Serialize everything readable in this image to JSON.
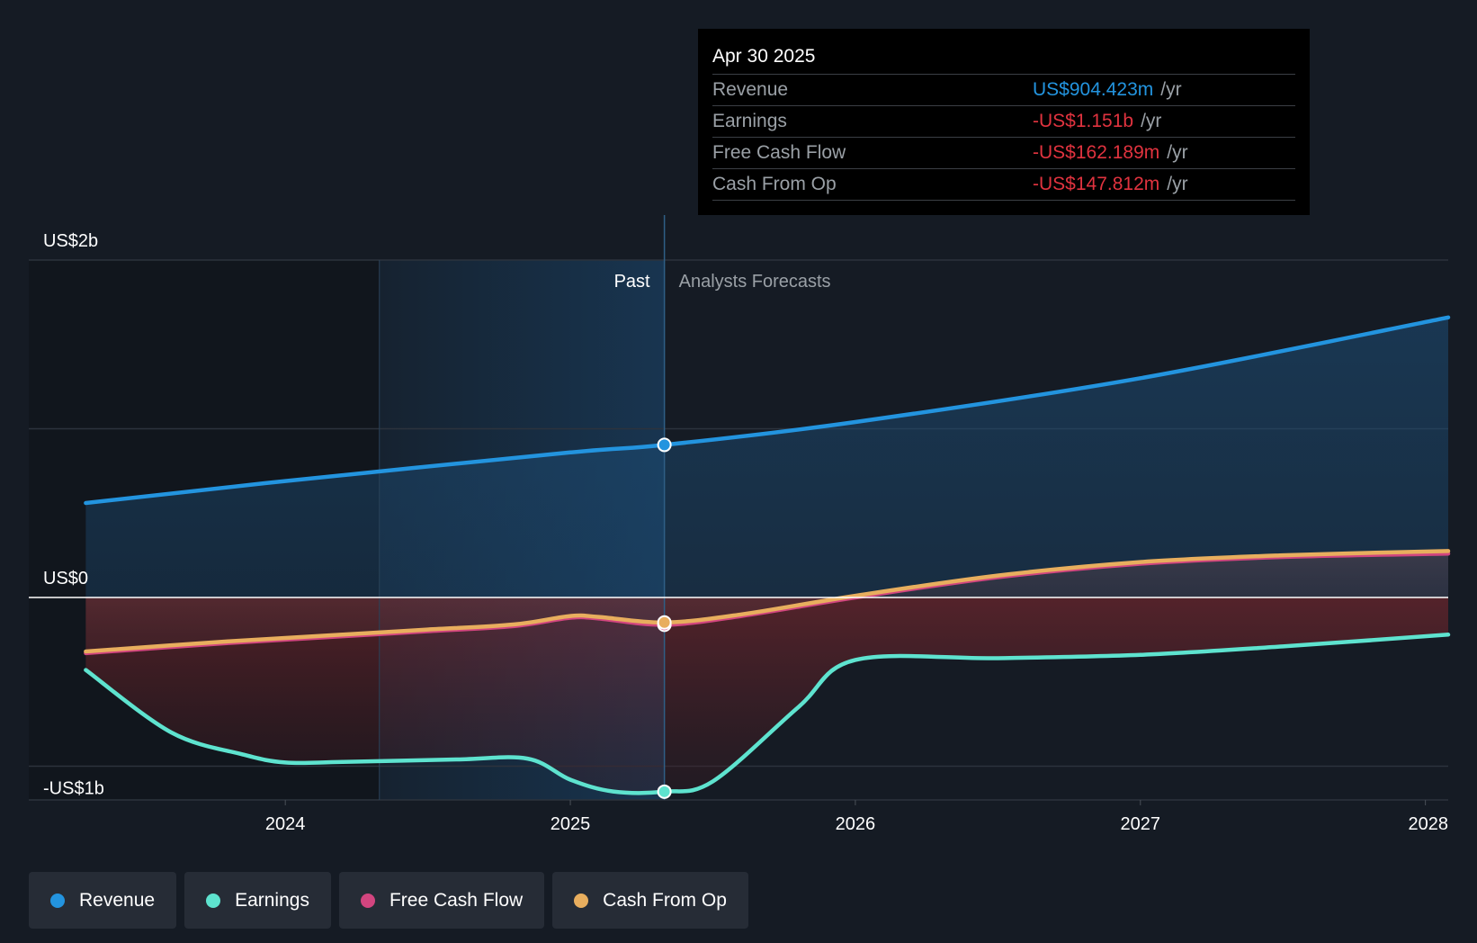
{
  "chart_data": {
    "type": "line",
    "title": "",
    "x_axis": {
      "ticks": [
        "2024",
        "2025",
        "2026",
        "2027",
        "2028"
      ],
      "range": [
        2023.1,
        2028.08
      ]
    },
    "y_axis": {
      "tick_labels": [
        "US$2b",
        "US$0",
        "-US$1b"
      ],
      "ticks": [
        2000,
        0,
        -1000
      ],
      "range": [
        -1200,
        2000
      ],
      "unit": "US$ millions"
    },
    "regions": {
      "past_label": "Past",
      "forecast_label": "Analysts Forecasts",
      "divider_x": 2025.33,
      "highlight_start_x": 2024.33
    },
    "series": [
      {
        "name": "Revenue",
        "color": "#2394df",
        "x": [
          2023.3,
          2024.0,
          2025.0,
          2025.33,
          2026.0,
          2027.0,
          2028.08
        ],
        "values": [
          560,
          690,
          860,
          904.4,
          1040,
          1300,
          1660
        ]
      },
      {
        "name": "Earnings",
        "color": "#5ee3cf",
        "x": [
          2023.3,
          2023.6,
          2023.85,
          2024.0,
          2024.2,
          2024.6,
          2024.85,
          2025.0,
          2025.15,
          2025.33,
          2025.5,
          2025.8,
          2026.0,
          2026.5,
          2027.0,
          2027.5,
          2028.08
        ],
        "values": [
          -430,
          -800,
          -930,
          -978,
          -975,
          -960,
          -955,
          -1080,
          -1150,
          -1151,
          -1090,
          -650,
          -370,
          -360,
          -340,
          -290,
          -220
        ]
      },
      {
        "name": "Free Cash Flow",
        "color": "#d2457f",
        "x": [
          2023.3,
          2023.8,
          2024.2,
          2024.5,
          2024.8,
          2025.0,
          2025.1,
          2025.33,
          2025.6,
          2026.0,
          2026.5,
          2027.0,
          2027.5,
          2028.08
        ],
        "values": [
          -330,
          -270,
          -230,
          -200,
          -170,
          -120,
          -125,
          -162,
          -110,
          0,
          120,
          200,
          240,
          260
        ]
      },
      {
        "name": "Cash From Op",
        "color": "#e8ae5e",
        "x": [
          2023.3,
          2023.8,
          2024.2,
          2024.5,
          2024.8,
          2025.0,
          2025.1,
          2025.33,
          2025.6,
          2026.0,
          2026.5,
          2027.0,
          2027.5,
          2028.08
        ],
        "values": [
          -320,
          -260,
          -220,
          -190,
          -160,
          -110,
          -115,
          -148,
          -100,
          10,
          130,
          210,
          250,
          275
        ]
      }
    ],
    "highlight_point": {
      "x": 2025.33
    }
  },
  "tooltip": {
    "date": "Apr 30 2025",
    "rows": [
      {
        "label": "Revenue",
        "value": "US$904.423m",
        "unit": "/yr",
        "color": "#2394df"
      },
      {
        "label": "Earnings",
        "value": "-US$1.151b",
        "unit": "/yr",
        "color": "#e0333f"
      },
      {
        "label": "Free Cash Flow",
        "value": "-US$162.189m",
        "unit": "/yr",
        "color": "#e0333f"
      },
      {
        "label": "Cash From Op",
        "value": "-US$147.812m",
        "unit": "/yr",
        "color": "#e0333f"
      }
    ]
  },
  "legend": [
    {
      "label": "Revenue",
      "color": "#2394df"
    },
    {
      "label": "Earnings",
      "color": "#5ee3cf"
    },
    {
      "label": "Free Cash Flow",
      "color": "#d2457f"
    },
    {
      "label": "Cash From Op",
      "color": "#e8ae5e"
    }
  ]
}
